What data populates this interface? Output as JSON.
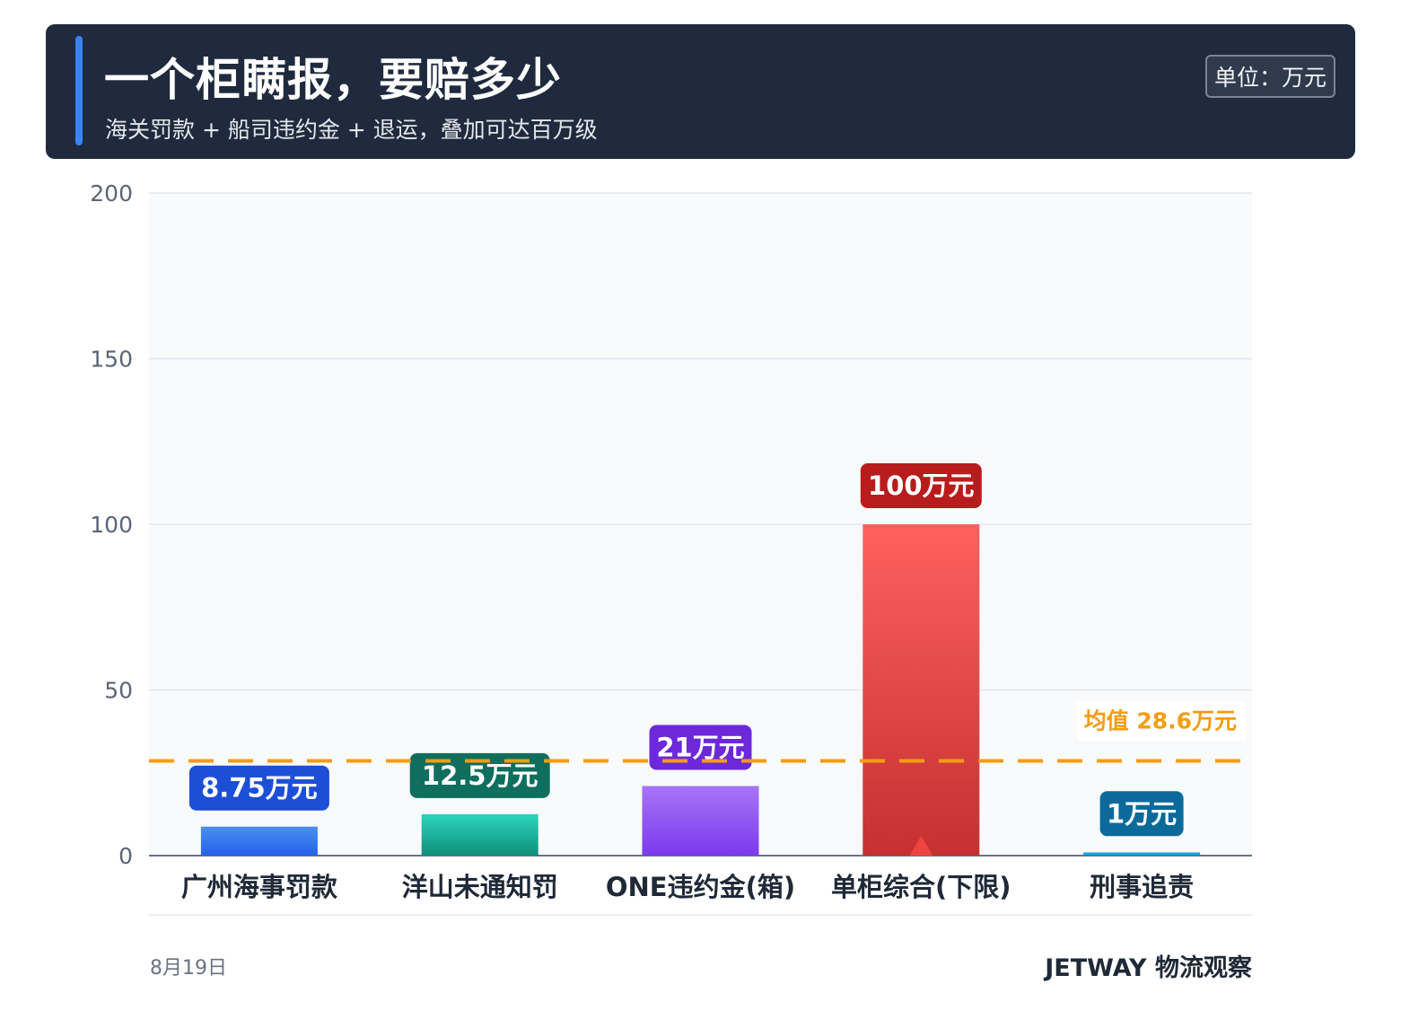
{
  "header": {
    "title": "一个柜瞒报，要赔多少",
    "subtitle": "海关罚款 + 船司违约金 + 退运，叠加可达百万级",
    "unit": "单位：万元"
  },
  "chart_data": {
    "type": "bar",
    "categories": [
      "广州海事罚款",
      "洋山未通知罚",
      "ONE违约金(箱)",
      "单柜综合(下限)",
      "刑事追责"
    ],
    "values": [
      8.75,
      12.5,
      21,
      100,
      1
    ],
    "data_labels": [
      "8.75万元",
      "12.5万元",
      "21万元",
      "100万元",
      "1万元"
    ],
    "ylim": [
      0,
      200
    ],
    "yticks": [
      0,
      50,
      100,
      150,
      200
    ],
    "grid": true,
    "reference_line": {
      "value": 28.6,
      "label": "均值 28.6万元",
      "color": "#f29d12"
    },
    "colors": {
      "bars": [
        [
          "#4a8ff0",
          "#2563eb"
        ],
        [
          "#2dd4bf",
          "#0f8f7a"
        ],
        [
          "#a675f7",
          "#7c3aed"
        ],
        [
          "#ff6060",
          "#c53030"
        ],
        [
          "#38bdf8",
          "#0284c7"
        ]
      ],
      "label_bg": [
        "#1d4ed8",
        "#0f6e5e",
        "#6d28d9",
        "#b91c1c",
        "#0b6a9a"
      ],
      "highlight_marker": "#ef4444"
    },
    "highlight_index": 3
  },
  "footer": {
    "date": "8月19日",
    "brand": "JETWAY 物流观察"
  }
}
